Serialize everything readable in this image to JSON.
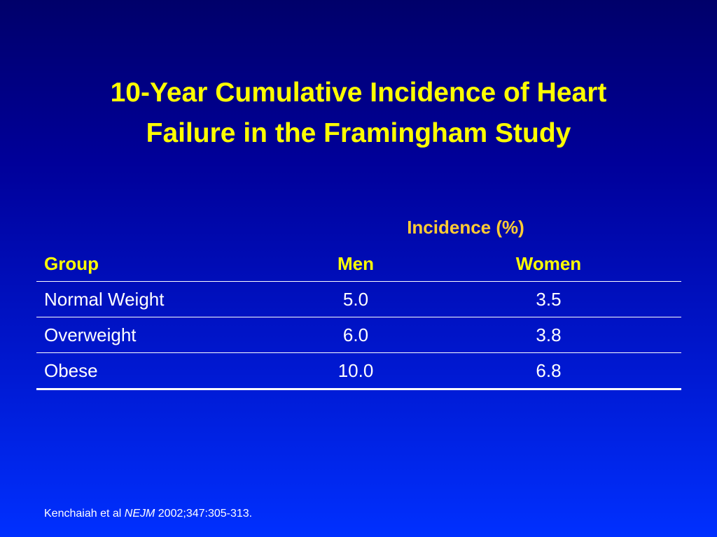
{
  "slide": {
    "title_line1": "10-Year Cumulative Incidence of Heart",
    "title_line2": "Failure in the Framingham Study",
    "colors": {
      "title": "#ffff00",
      "incidence_header": "#ffcc33",
      "body_text": "#ffffff",
      "background_top": "#00006a",
      "background_bottom": "#0030ff"
    }
  },
  "table": {
    "incidence_header": "Incidence (%)",
    "columns": [
      "Group",
      "Men",
      "Women"
    ],
    "rows": [
      [
        "Normal Weight",
        "5.0",
        "3.5"
      ],
      [
        "Overweight",
        "6.0",
        "3.8"
      ],
      [
        "Obese",
        "10.0",
        "6.8"
      ]
    ]
  },
  "citation": {
    "authors": "Kenchaiah et al",
    "journal": "NEJM",
    "reference": "2002;347:305-313."
  }
}
